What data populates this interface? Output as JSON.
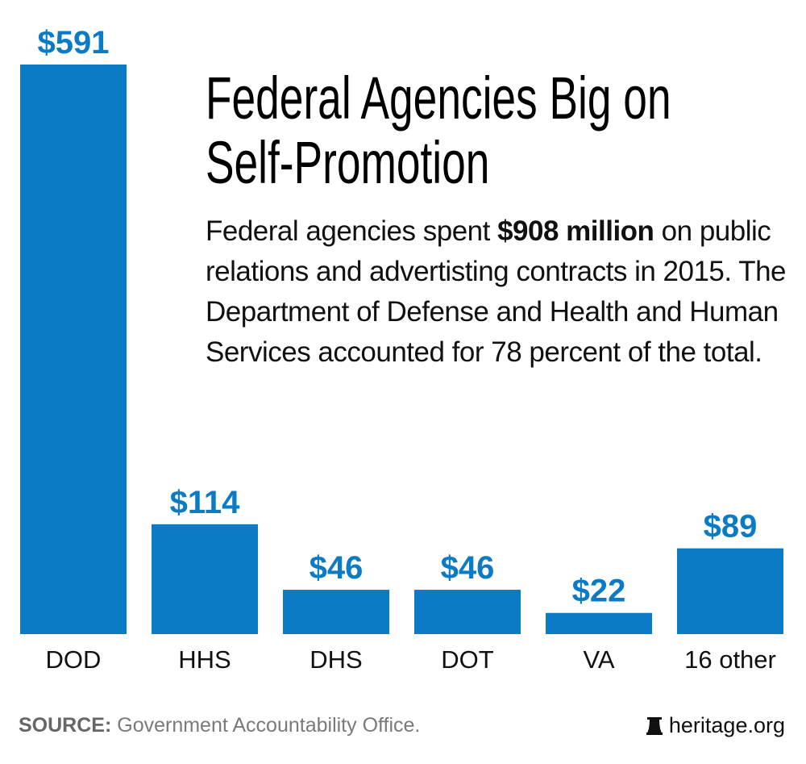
{
  "chart_data": {
    "type": "bar",
    "title": "Federal Agencies Big on Self-Promotion",
    "subtitle_parts": {
      "before": "Federal agencies spent ",
      "bold": "$908 million",
      "after": " on public relations and advertisting contracts in 2015. The Department of Defense and Health and Human Services accounted for 78 percent of the total."
    },
    "categories": [
      "DOD",
      "HHS",
      "DHS",
      "DOT",
      "VA",
      "16 other"
    ],
    "values": [
      591,
      114,
      46,
      46,
      22,
      89
    ],
    "data_labels": [
      "$591",
      "$114",
      "$46",
      "$46",
      "$22",
      "$89"
    ],
    "unit": "millions of dollars",
    "xlabel": "",
    "ylabel": "",
    "ylim": [
      0,
      591
    ],
    "grid": false,
    "axes_visible": false,
    "bar_color": "#0a7bc4",
    "label_color": "#0a7bc4"
  },
  "footer": {
    "source_label": "SOURCE:",
    "source_text": " Government Accountability Office.",
    "brand": "heritage.org",
    "brand_icon": "liberty-bell-icon"
  }
}
